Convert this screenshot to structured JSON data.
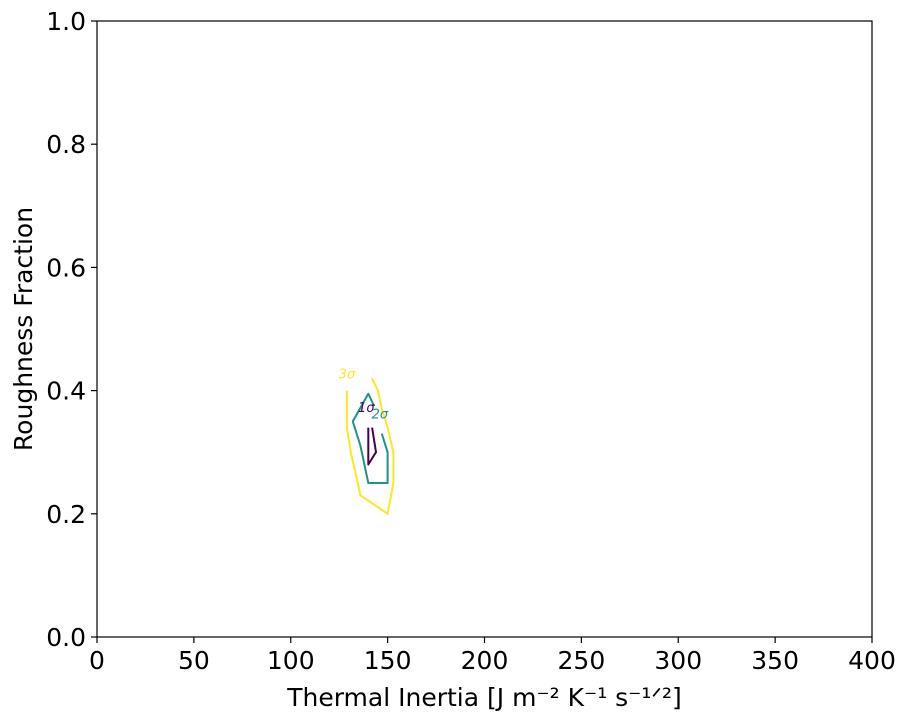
{
  "chart_data": {
    "type": "contour",
    "title": "",
    "xlabel": "Thermal Inertia [J m⁻² K⁻¹ s⁻¹ᐟ²]",
    "ylabel": "Roughness Fraction",
    "xlim": [
      0,
      400
    ],
    "ylim": [
      0,
      1
    ],
    "xticks": [
      0,
      50,
      100,
      150,
      200,
      250,
      300,
      350,
      400
    ],
    "yticks": [
      0.0,
      0.2,
      0.4,
      0.6,
      0.8,
      1.0
    ],
    "xtick_labels": [
      "0",
      "50",
      "100",
      "150",
      "200",
      "250",
      "300",
      "350",
      "400"
    ],
    "ytick_labels": [
      "0.0",
      "0.2",
      "0.4",
      "0.6",
      "0.8",
      "1.0"
    ],
    "grid": false,
    "series": [
      {
        "name": "3σ",
        "color": "#fde725",
        "label": "3σ",
        "label_at": [
          129,
          0.42
        ],
        "points": [
          [
            129,
            0.4
          ],
          [
            129,
            0.34
          ],
          [
            131,
            0.3
          ],
          [
            136,
            0.23
          ],
          [
            150,
            0.2
          ],
          [
            153,
            0.25
          ],
          [
            153,
            0.3
          ],
          [
            150,
            0.34
          ],
          [
            147,
            0.37
          ],
          [
            145,
            0.4
          ],
          [
            142,
            0.42
          ]
        ]
      },
      {
        "name": "2σ",
        "color": "#21918c",
        "label": "2σ",
        "label_at": [
          146,
          0.355
        ],
        "points": [
          [
            147,
            0.33
          ],
          [
            150,
            0.3
          ],
          [
            150,
            0.25
          ],
          [
            140,
            0.25
          ],
          [
            136,
            0.31
          ],
          [
            132,
            0.35
          ],
          [
            140,
            0.395
          ],
          [
            143,
            0.375
          ]
        ]
      },
      {
        "name": "1σ",
        "color": "#440154",
        "label": "1σ",
        "label_at": [
          139,
          0.365
        ],
        "points": [
          [
            140,
            0.34
          ],
          [
            140,
            0.28
          ],
          [
            144,
            0.3
          ],
          [
            142,
            0.34
          ]
        ]
      }
    ]
  }
}
